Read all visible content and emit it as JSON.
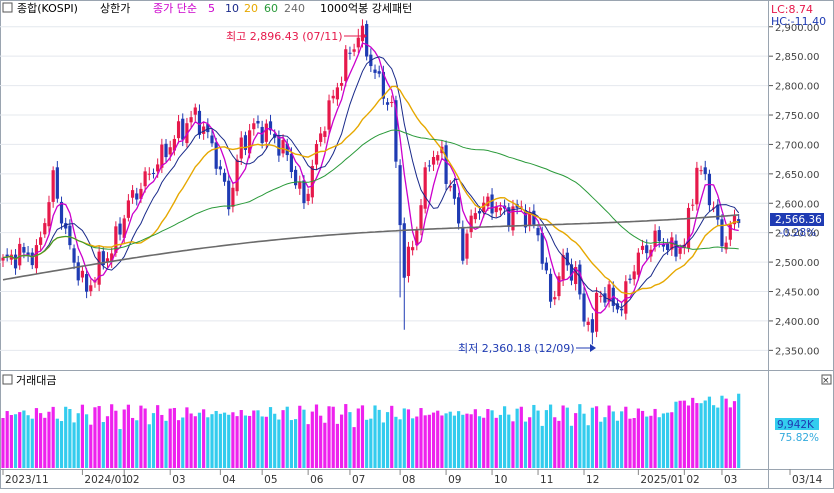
{
  "header": {
    "symbol": "종합(KOSPI)",
    "view": "상한가",
    "ma_label": "종가 단순",
    "ma_periods": [
      "5",
      "10",
      "20",
      "60",
      "240"
    ],
    "extra": "1000억봉 강세패턴",
    "lc": "LC:8.74",
    "hc": "HC:-11.40"
  },
  "colors": {
    "up": "#e6194b",
    "down": "#1f3bb3",
    "ma5": "#cc00cc",
    "ma10": "#1a2a8a",
    "ma20": "#e6a800",
    "ma60": "#2a9a3a",
    "ma240": "#6b6b6b",
    "vol_up": "#ee22ee",
    "vol_down": "#33ccee"
  },
  "chart_data": {
    "type": "candlestick",
    "price_axis": {
      "min": 2320,
      "max": 2920,
      "ticks": [
        "2,900.00",
        "2,850.00",
        "2,800.00",
        "2,750.00",
        "2,700.00",
        "2,650.00",
        "2,600.00",
        "2,550.00",
        "2,500.00",
        "2,450.00",
        "2,400.00",
        "2,350.00"
      ],
      "tick_values": [
        2900,
        2850,
        2800,
        2750,
        2700,
        2650,
        2600,
        2550,
        2500,
        2450,
        2400,
        2350
      ]
    },
    "x_labels": [
      "2023/11",
      "2024/01",
      "02",
      "03",
      "04",
      "05",
      "06",
      "07",
      "08",
      "09",
      "10",
      "11",
      "12",
      "2025/01",
      "02",
      "03",
      "03/14"
    ],
    "x_label_index": [
      0,
      19,
      29,
      40,
      52,
      62,
      73,
      83,
      95,
      106,
      117,
      128,
      139,
      152,
      163,
      172,
      189
    ],
    "anchors": [
      [
        0,
        2500
      ],
      [
        4,
        2515
      ],
      [
        8,
        2510
      ],
      [
        12,
        2640
      ],
      [
        16,
        2520
      ],
      [
        20,
        2450
      ],
      [
        23,
        2495
      ],
      [
        26,
        2520
      ],
      [
        30,
        2600
      ],
      [
        34,
        2640
      ],
      [
        38,
        2680
      ],
      [
        42,
        2720
      ],
      [
        46,
        2750
      ],
      [
        50,
        2700
      ],
      [
        54,
        2600
      ],
      [
        57,
        2700
      ],
      [
        60,
        2730
      ],
      [
        64,
        2720
      ],
      [
        68,
        2680
      ],
      [
        72,
        2600
      ],
      [
        76,
        2720
      ],
      [
        80,
        2800
      ],
      [
        83,
        2860
      ],
      [
        86,
        2880
      ],
      [
        89,
        2820
      ],
      [
        93,
        2760
      ],
      [
        96,
        2480
      ],
      [
        99,
        2560
      ],
      [
        102,
        2680
      ],
      [
        105,
        2680
      ],
      [
        108,
        2600
      ],
      [
        110,
        2520
      ],
      [
        113,
        2590
      ],
      [
        117,
        2600
      ],
      [
        120,
        2580
      ],
      [
        124,
        2590
      ],
      [
        128,
        2550
      ],
      [
        131,
        2430
      ],
      [
        134,
        2500
      ],
      [
        137,
        2480
      ],
      [
        139,
        2400
      ],
      [
        142,
        2450
      ],
      [
        145,
        2440
      ],
      [
        148,
        2420
      ],
      [
        150,
        2480
      ],
      [
        153,
        2520
      ],
      [
        157,
        2540
      ],
      [
        160,
        2520
      ],
      [
        163,
        2530
      ],
      [
        166,
        2660
      ],
      [
        168,
        2640
      ],
      [
        170,
        2590
      ],
      [
        172,
        2530
      ],
      [
        174,
        2560
      ],
      [
        176,
        2566.36
      ]
    ],
    "high": {
      "label": "최고 2,896.43 (07/11)",
      "value": 2896.43,
      "index": 85
    },
    "low": {
      "label": "최저 2,360.18 (12/09)",
      "value": 2360.18,
      "index": 141
    },
    "last": {
      "price": "2,566.36",
      "change": "-0.28%",
      "value": 2566.36
    },
    "volume": {
      "title": "거래대금",
      "last": "9,942K",
      "pct": "75.82%"
    }
  }
}
